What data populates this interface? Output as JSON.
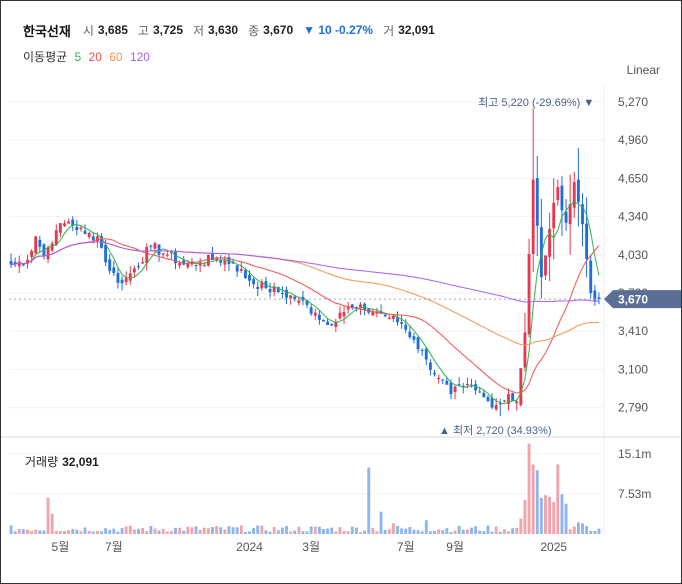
{
  "header": {
    "name": "한국선재",
    "open_label": "시",
    "open": "3,685",
    "high_label": "고",
    "high": "3,725",
    "low_label": "저",
    "low": "3,630",
    "close_label": "종",
    "close": "3,670",
    "change": "▼ 10 -0.27%",
    "volume_label": "거",
    "volume": "32,091"
  },
  "ma_legend": {
    "label": "이동평균",
    "items": [
      {
        "period": "5",
        "color": "#2ab34a"
      },
      {
        "period": "20",
        "color": "#f24d4d"
      },
      {
        "period": "60",
        "color": "#f2934a"
      },
      {
        "period": "120",
        "color": "#a55af2"
      }
    ]
  },
  "scale_toggle": "Linear",
  "colors": {
    "up": "#e8384f",
    "down": "#1e6fd9",
    "last_price_bg": "#5b6f96"
  },
  "chart_data": {
    "type": "candlestick",
    "y_ticks": [
      "5,270",
      "4,960",
      "4,650",
      "4,340",
      "4,030",
      "3,720",
      "3,410",
      "3,100",
      "2,790"
    ],
    "y_tick_values": [
      5270,
      4960,
      4650,
      4340,
      4030,
      3720,
      3410,
      3100,
      2790
    ],
    "ylim": [
      2600,
      5400
    ],
    "x_ticks": [
      "5월",
      "7월",
      "2024",
      "3월",
      "7월",
      "9월",
      "2025"
    ],
    "last_price": "3,670",
    "max_annotation": "최고 5,220 (-29.69%) ▼",
    "min_annotation": "▲ 최저 2,720 (34.93%)",
    "volume_title": "거래량",
    "volume_value": "32,091",
    "volume_ticks": [
      "15.1m",
      "7.53m"
    ],
    "volume_tick_values": [
      15100000,
      7530000
    ],
    "volume_max": 17500000,
    "anchors": [
      {
        "i": 0,
        "c": 3950
      },
      {
        "i": 4,
        "c": 3990
      },
      {
        "i": 6,
        "c": 4180
      },
      {
        "i": 8,
        "c": 4020
      },
      {
        "i": 11,
        "c": 4230
      },
      {
        "i": 14,
        "c": 4300
      },
      {
        "i": 18,
        "c": 4200
      },
      {
        "i": 21,
        "c": 4180
      },
      {
        "i": 24,
        "c": 3900
      },
      {
        "i": 27,
        "c": 3800
      },
      {
        "i": 30,
        "c": 3920
      },
      {
        "i": 34,
        "c": 4100
      },
      {
        "i": 38,
        "c": 4030
      },
      {
        "i": 42,
        "c": 3950
      },
      {
        "i": 46,
        "c": 3970
      },
      {
        "i": 50,
        "c": 4000
      },
      {
        "i": 54,
        "c": 3960
      },
      {
        "i": 58,
        "c": 3820
      },
      {
        "i": 62,
        "c": 3760
      },
      {
        "i": 66,
        "c": 3720
      },
      {
        "i": 70,
        "c": 3660
      },
      {
        "i": 74,
        "c": 3560
      },
      {
        "i": 77,
        "c": 3460
      },
      {
        "i": 80,
        "c": 3560
      },
      {
        "i": 83,
        "c": 3600
      },
      {
        "i": 86,
        "c": 3580
      },
      {
        "i": 89,
        "c": 3570
      },
      {
        "i": 92,
        "c": 3520
      },
      {
        "i": 95,
        "c": 3470
      },
      {
        "i": 98,
        "c": 3340
      },
      {
        "i": 101,
        "c": 3180
      },
      {
        "i": 104,
        "c": 3030
      },
      {
        "i": 107,
        "c": 2900
      },
      {
        "i": 110,
        "c": 2960
      },
      {
        "i": 113,
        "c": 2930
      },
      {
        "i": 116,
        "c": 2840
      },
      {
        "i": 119,
        "c": 2820
      },
      {
        "i": 121,
        "c": 2900
      },
      {
        "i": 123,
        "c": 2840
      },
      {
        "i": 125,
        "c": 3400
      },
      {
        "i": 127,
        "c": 4640
      },
      {
        "i": 129,
        "c": 3850
      },
      {
        "i": 131,
        "c": 4240
      },
      {
        "i": 133,
        "c": 4580
      },
      {
        "i": 135,
        "c": 4290
      },
      {
        "i": 137,
        "c": 4620
      },
      {
        "i": 139,
        "c": 4280
      },
      {
        "i": 141,
        "c": 3720
      },
      {
        "i": 143,
        "c": 3670
      }
    ],
    "volume_spikes": [
      {
        "i": 9,
        "v": 6800000
      },
      {
        "i": 10,
        "v": 3800000
      },
      {
        "i": 87,
        "v": 12500000
      },
      {
        "i": 90,
        "v": 4200000
      },
      {
        "i": 93,
        "v": 2000000
      },
      {
        "i": 101,
        "v": 2600000
      },
      {
        "i": 124,
        "v": 2900000
      },
      {
        "i": 125,
        "v": 6400000
      },
      {
        "i": 126,
        "v": 17000000
      },
      {
        "i": 127,
        "v": 13100000
      },
      {
        "i": 128,
        "v": 12000000
      },
      {
        "i": 129,
        "v": 6800000
      },
      {
        "i": 130,
        "v": 7300000
      },
      {
        "i": 131,
        "v": 7000000
      },
      {
        "i": 132,
        "v": 6000000
      },
      {
        "i": 133,
        "v": 13100000
      },
      {
        "i": 134,
        "v": 7500000
      },
      {
        "i": 135,
        "v": 5700000
      },
      {
        "i": 137,
        "v": 1400000
      },
      {
        "i": 138,
        "v": 2200000
      },
      {
        "i": 139,
        "v": 2000000
      }
    ],
    "n_candles": 144,
    "volume_base": 900000
  }
}
